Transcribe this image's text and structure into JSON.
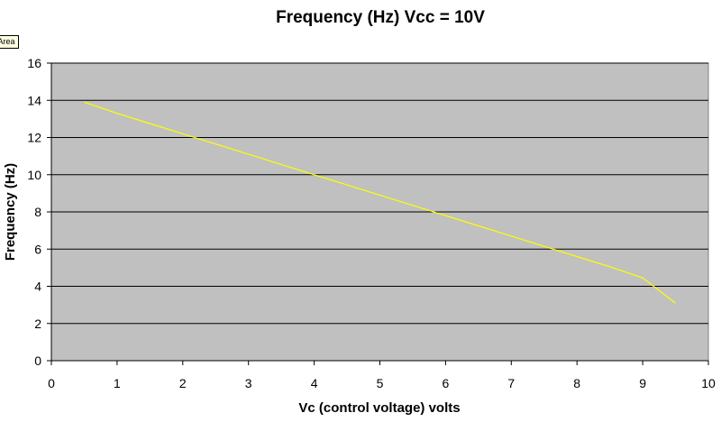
{
  "tooltip": "rt Area",
  "chart_data": {
    "type": "line",
    "title": "Frequency (Hz) Vcc = 10V",
    "xlabel": "Vc (control voltage) volts",
    "ylabel": "Frequency (Hz)",
    "xlim": [
      0,
      10
    ],
    "ylim": [
      0,
      16
    ],
    "x_ticks": [
      "0",
      "1",
      "2",
      "3",
      "4",
      "5",
      "6",
      "7",
      "8",
      "9",
      "10"
    ],
    "y_ticks": [
      "0",
      "2",
      "4",
      "6",
      "8",
      "10",
      "12",
      "14",
      "16"
    ],
    "grid": "horizontal",
    "legend": "none",
    "plot_background": "#c0c0c0",
    "series": [
      {
        "color": "#ffff00",
        "x": [
          0.5,
          1.0,
          1.5,
          2.0,
          2.5,
          3.0,
          3.5,
          4.0,
          4.5,
          5.0,
          5.5,
          6.0,
          6.5,
          7.0,
          7.5,
          8.0,
          8.5,
          9.0,
          9.5
        ],
        "y": [
          13.9,
          13.3,
          12.75,
          12.2,
          11.65,
          11.1,
          10.55,
          10.0,
          9.45,
          8.9,
          8.35,
          7.8,
          7.25,
          6.7,
          6.15,
          5.6,
          5.05,
          4.45,
          3.1
        ]
      }
    ]
  }
}
